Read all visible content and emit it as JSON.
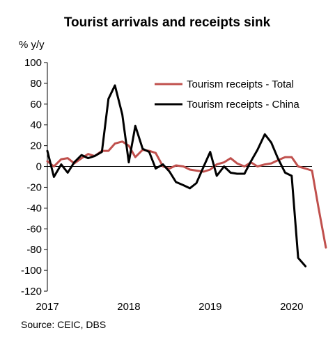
{
  "chart_data": {
    "type": "line",
    "title": "Tourist arrivals and receipts sink",
    "ylabel": "% y/y",
    "xlabel": "",
    "ylim": [
      -120,
      100
    ],
    "yticks": [
      100,
      80,
      60,
      40,
      20,
      0,
      -20,
      -40,
      -60,
      -80,
      -100,
      -120
    ],
    "xlim": [
      2017,
      2020.25
    ],
    "xticks": [
      2017,
      2018,
      2019,
      2020
    ],
    "xtick_labels": [
      "2017",
      "2018",
      "2019",
      "2020"
    ],
    "legend_placement": "top-right",
    "grid": false,
    "source": "Source: CEIC, DBS",
    "series": [
      {
        "name": "Tourism receipts - Total",
        "color": "#c0504d",
        "points": [
          [
            2017.0,
            5
          ],
          [
            2017.08,
            0
          ],
          [
            2017.17,
            7
          ],
          [
            2017.25,
            8
          ],
          [
            2017.33,
            3
          ],
          [
            2017.42,
            8
          ],
          [
            2017.5,
            12
          ],
          [
            2017.58,
            10
          ],
          [
            2017.67,
            15
          ],
          [
            2017.75,
            15
          ],
          [
            2017.83,
            22
          ],
          [
            2017.92,
            24
          ],
          [
            2018.0,
            20
          ],
          [
            2018.08,
            9
          ],
          [
            2018.17,
            16
          ],
          [
            2018.25,
            15
          ],
          [
            2018.33,
            13
          ],
          [
            2018.42,
            0
          ],
          [
            2018.5,
            -2
          ],
          [
            2018.58,
            1
          ],
          [
            2018.67,
            0
          ],
          [
            2018.75,
            -3
          ],
          [
            2018.83,
            -4
          ],
          [
            2018.92,
            -5
          ],
          [
            2019.0,
            -3
          ],
          [
            2019.08,
            2
          ],
          [
            2019.17,
            4
          ],
          [
            2019.25,
            8
          ],
          [
            2019.33,
            3
          ],
          [
            2019.42,
            0
          ],
          [
            2019.5,
            4
          ],
          [
            2019.58,
            0
          ],
          [
            2019.67,
            2
          ],
          [
            2019.75,
            3
          ],
          [
            2019.83,
            6
          ],
          [
            2019.92,
            9
          ],
          [
            2020.0,
            9
          ],
          [
            2020.08,
            0
          ],
          [
            2020.17,
            -2
          ],
          [
            2020.25,
            -4
          ],
          [
            2020.33,
            -40
          ],
          [
            2020.42,
            -78
          ]
        ]
      },
      {
        "name": "Tourism receipts - China",
        "color": "#000000",
        "points": [
          [
            2017.0,
            15
          ],
          [
            2017.08,
            -10
          ],
          [
            2017.17,
            2
          ],
          [
            2017.25,
            -6
          ],
          [
            2017.33,
            4
          ],
          [
            2017.42,
            11
          ],
          [
            2017.5,
            8
          ],
          [
            2017.58,
            10
          ],
          [
            2017.67,
            14
          ],
          [
            2017.75,
            65
          ],
          [
            2017.83,
            78
          ],
          [
            2017.92,
            50
          ],
          [
            2018.0,
            4
          ],
          [
            2018.08,
            39
          ],
          [
            2018.17,
            17
          ],
          [
            2018.25,
            14
          ],
          [
            2018.33,
            -2
          ],
          [
            2018.42,
            2
          ],
          [
            2018.5,
            -5
          ],
          [
            2018.58,
            -15
          ],
          [
            2018.67,
            -18
          ],
          [
            2018.75,
            -21
          ],
          [
            2018.83,
            -16
          ],
          [
            2018.92,
            0
          ],
          [
            2019.0,
            14
          ],
          [
            2019.08,
            -9
          ],
          [
            2019.17,
            0
          ],
          [
            2019.25,
            -6
          ],
          [
            2019.33,
            -7
          ],
          [
            2019.42,
            -7
          ],
          [
            2019.5,
            5
          ],
          [
            2019.58,
            16
          ],
          [
            2019.67,
            31
          ],
          [
            2019.75,
            23
          ],
          [
            2019.83,
            8
          ],
          [
            2019.92,
            -6
          ],
          [
            2020.0,
            -9
          ],
          [
            2020.08,
            -88
          ],
          [
            2020.17,
            -96
          ]
        ]
      }
    ]
  }
}
